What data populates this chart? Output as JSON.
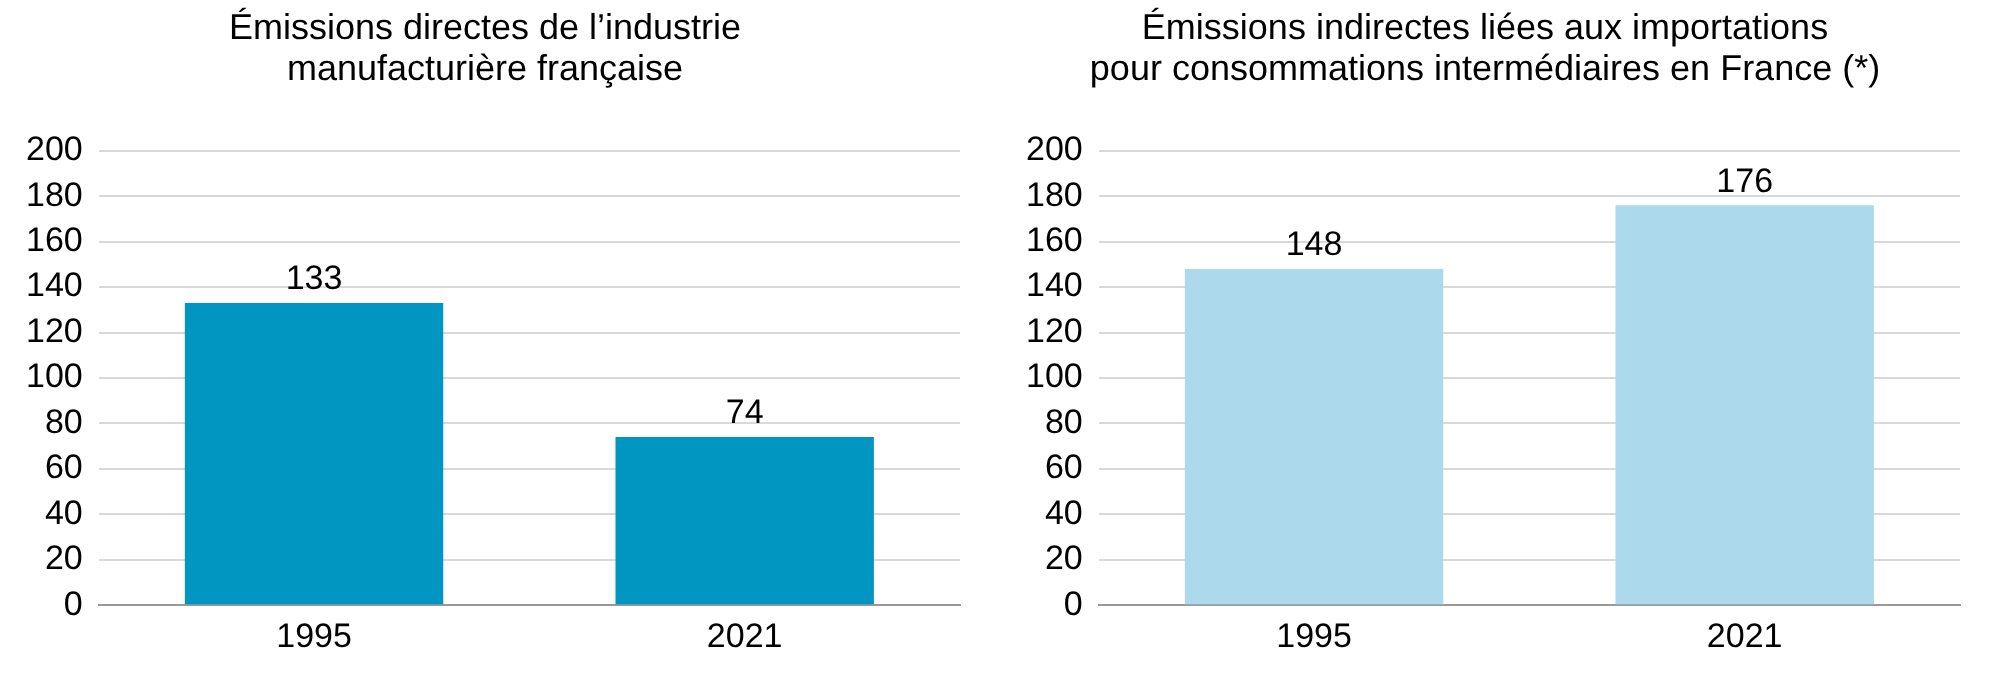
{
  "chart_data": [
    {
      "type": "bar",
      "title": "Émissions directes de l’industrie\nmanufacturière française",
      "categories": [
        "1995",
        "2021"
      ],
      "values": [
        133,
        74
      ],
      "color": "#0096c1",
      "ylim": [
        0,
        200
      ],
      "yticks": [
        0,
        20,
        40,
        60,
        80,
        100,
        120,
        140,
        160,
        180,
        200
      ],
      "grid": "y",
      "data_labels": true
    },
    {
      "type": "bar",
      "title": "Émissions indirectes liées aux importations\npour consommations intermédiaires en France (*)",
      "categories": [
        "1995",
        "2021"
      ],
      "values": [
        148,
        176
      ],
      "color": "#acd9eb",
      "ylim": [
        0,
        200
      ],
      "yticks": [
        0,
        20,
        40,
        60,
        80,
        100,
        120,
        140,
        160,
        180,
        200
      ],
      "grid": "y",
      "data_labels": true
    }
  ]
}
